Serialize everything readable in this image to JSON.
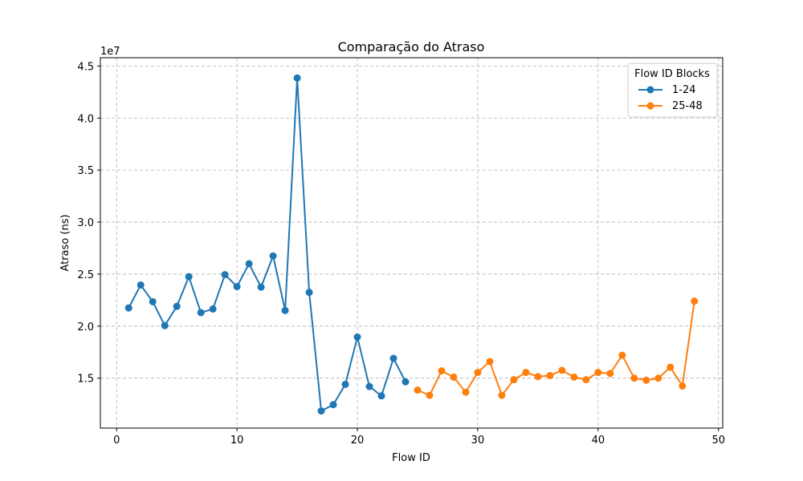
{
  "chart_data": {
    "type": "line",
    "title": "Comparação do Atraso",
    "xlabel": "Flow ID",
    "ylabel": "Atraso (ns)",
    "y_offset_label": "1e7",
    "xlim": [
      -1.35,
      50.35
    ],
    "ylim": [
      10200000,
      45800000
    ],
    "x_ticks": [
      0,
      10,
      20,
      30,
      40,
      50
    ],
    "y_ticks": [
      15000000,
      20000000,
      25000000,
      30000000,
      35000000,
      40000000,
      45000000
    ],
    "y_tick_labels": [
      "1.5",
      "2.0",
      "2.5",
      "3.0",
      "3.5",
      "4.0",
      "4.5"
    ],
    "grid": true,
    "legend": {
      "title": "Flow ID Blocks",
      "placement": "top-right"
    },
    "series": [
      {
        "name": "1-24",
        "color": "#1f77b4",
        "x": [
          1,
          2,
          3,
          4,
          5,
          6,
          7,
          8,
          9,
          10,
          11,
          12,
          13,
          14,
          15,
          16,
          17,
          18,
          19,
          20,
          21,
          22,
          23,
          24
        ],
        "y": [
          21750000,
          23950000,
          22350000,
          20050000,
          21900000,
          24750000,
          21300000,
          21650000,
          24950000,
          23800000,
          26000000,
          23750000,
          26750000,
          21500000,
          43850000,
          23250000,
          11850000,
          12450000,
          14400000,
          18950000,
          14200000,
          13300000,
          16900000,
          14650000
        ]
      },
      {
        "name": "25-48",
        "color": "#ff7f0e",
        "x": [
          25,
          26,
          27,
          28,
          29,
          30,
          31,
          32,
          33,
          34,
          35,
          36,
          37,
          38,
          39,
          40,
          41,
          42,
          43,
          44,
          45,
          46,
          47,
          48
        ],
        "y": [
          13850000,
          13350000,
          15700000,
          15100000,
          13650000,
          15550000,
          16600000,
          13350000,
          14850000,
          15550000,
          15150000,
          15250000,
          15750000,
          15100000,
          14850000,
          15550000,
          15450000,
          17200000,
          15000000,
          14800000,
          15000000,
          16050000,
          14250000,
          22400000
        ]
      }
    ]
  }
}
